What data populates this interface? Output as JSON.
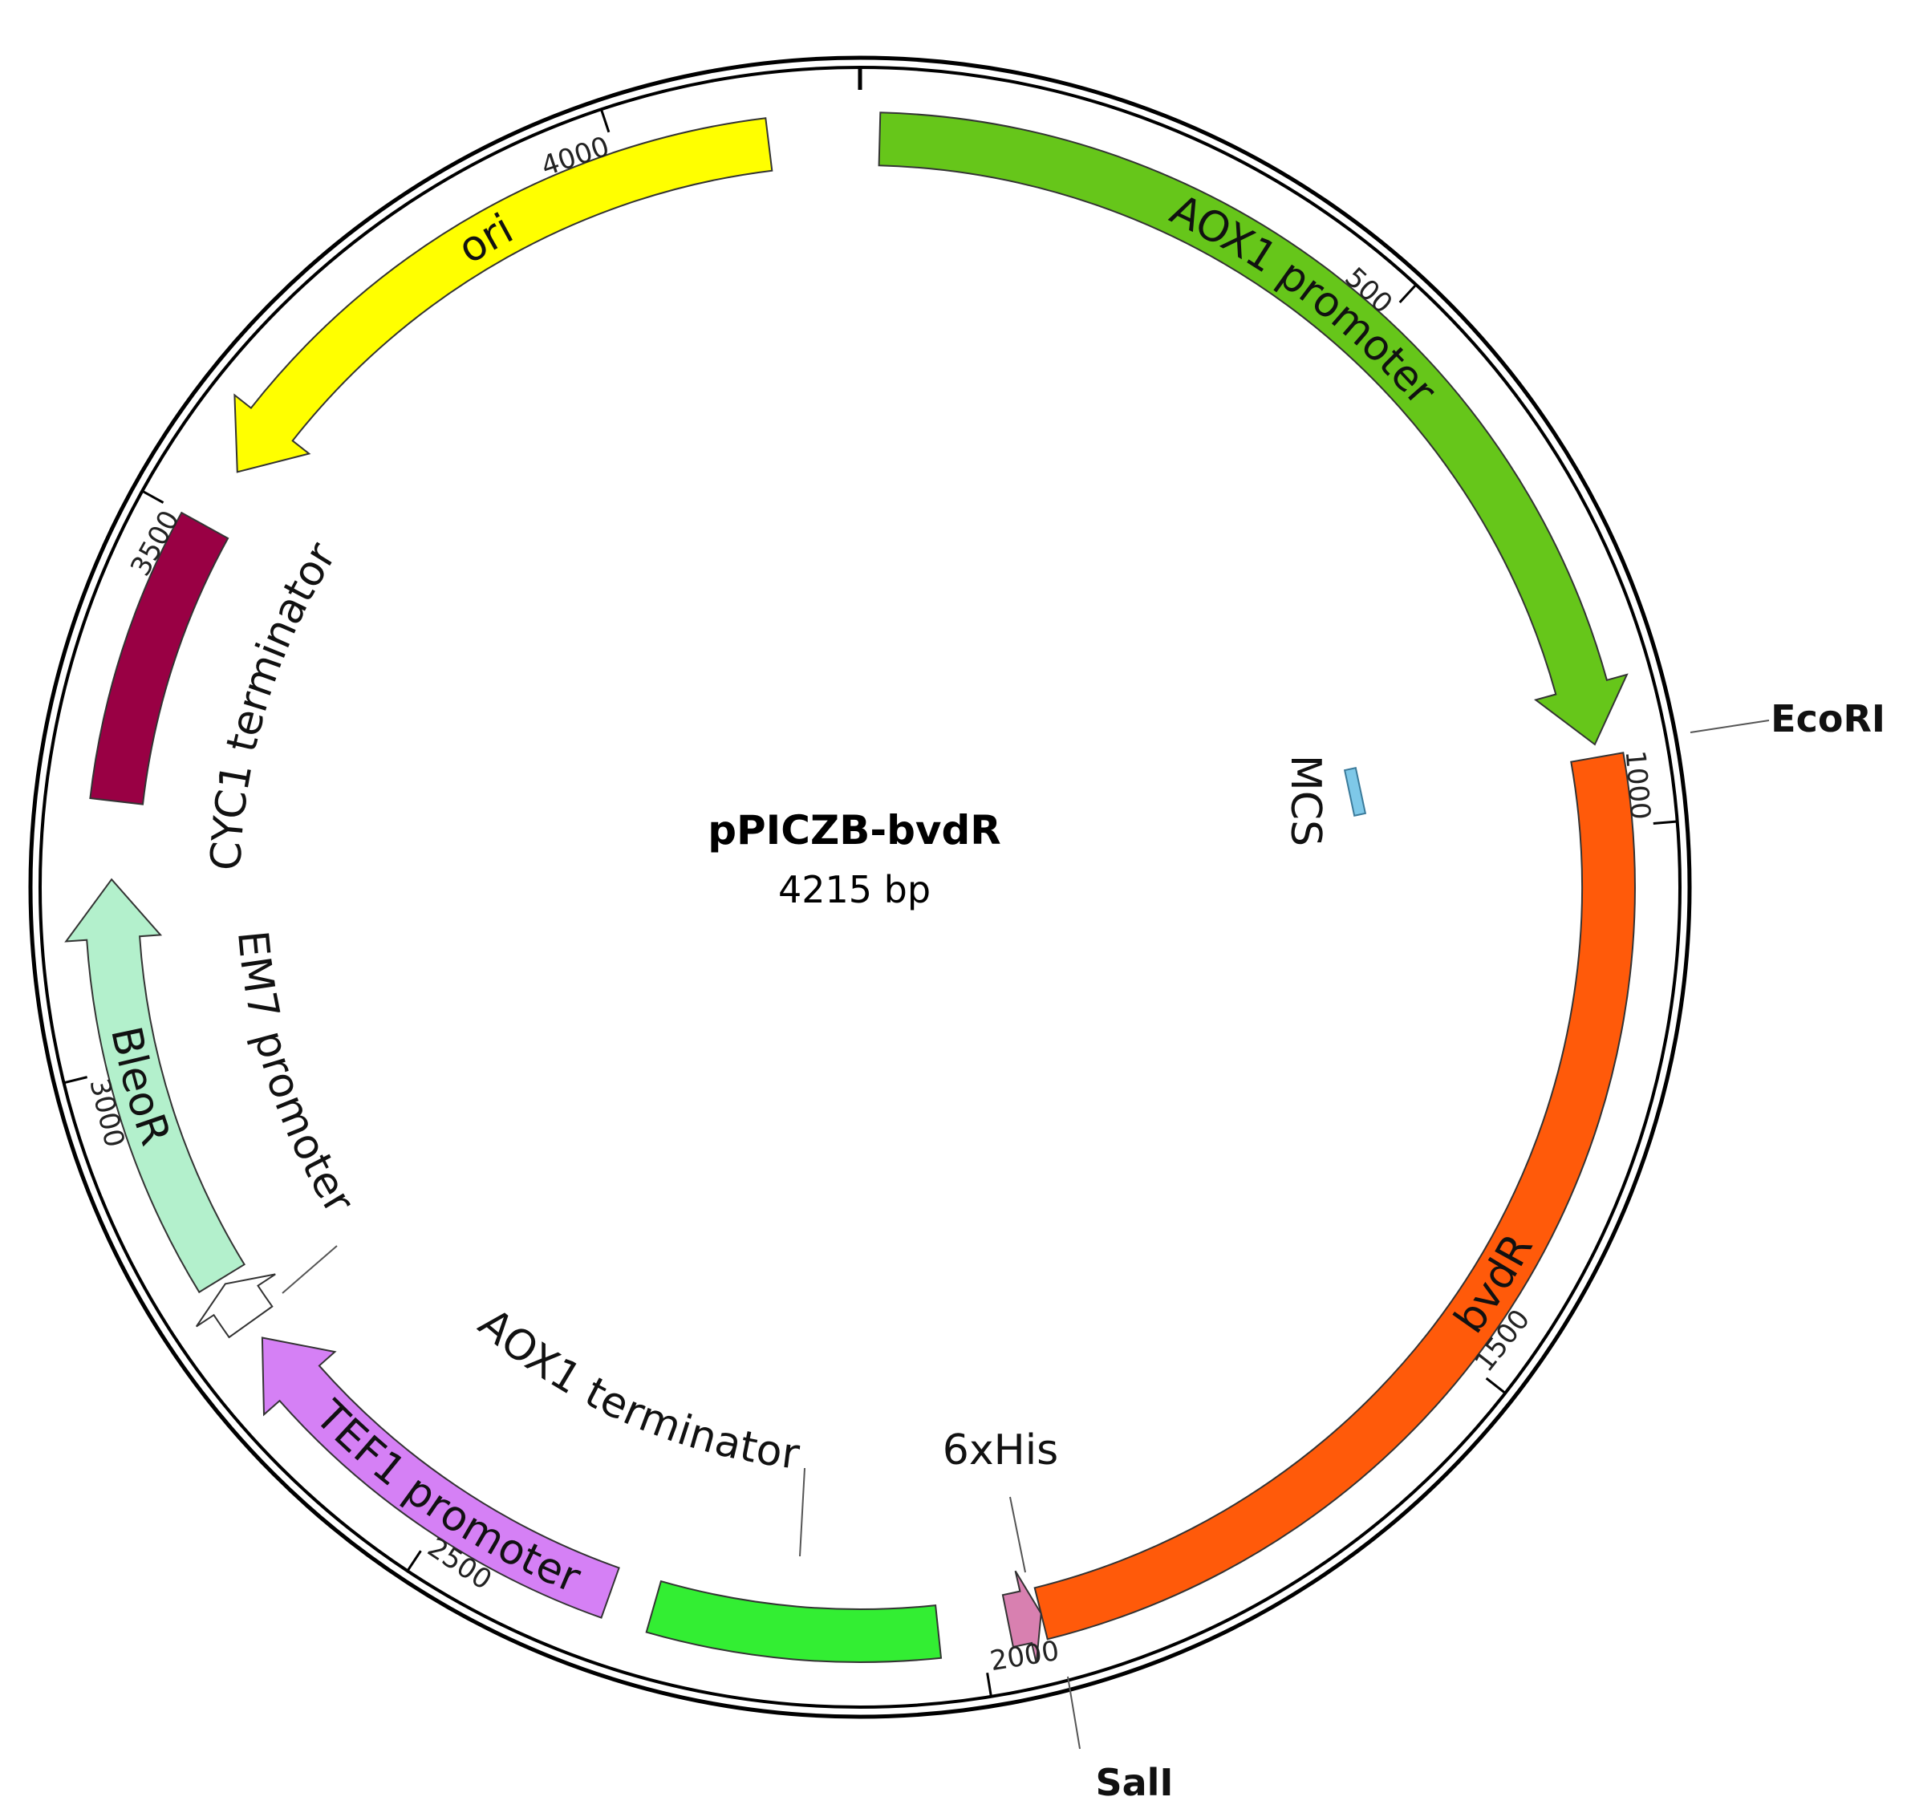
{
  "title": "pPICZB-bvdR",
  "size": "4215 bp",
  "features": [
    {
      "label": "AOX1 promoter"
    },
    {
      "label": "MCS"
    },
    {
      "label": "bvdR"
    },
    {
      "label": "6xHis"
    },
    {
      "label": "AOX1 terminator"
    },
    {
      "label": "TEF1 promoter"
    },
    {
      "label": "EM7 promoter"
    },
    {
      "label": "BleoR"
    },
    {
      "label": "CYC1 terminator"
    },
    {
      "label": "ori"
    }
  ],
  "sites": [
    {
      "label": "EcoRI"
    },
    {
      "label": "SalI"
    }
  ],
  "ticks": [
    "500",
    "1000",
    "1500",
    "2000",
    "2500",
    "3000",
    "3500",
    "4000"
  ]
}
